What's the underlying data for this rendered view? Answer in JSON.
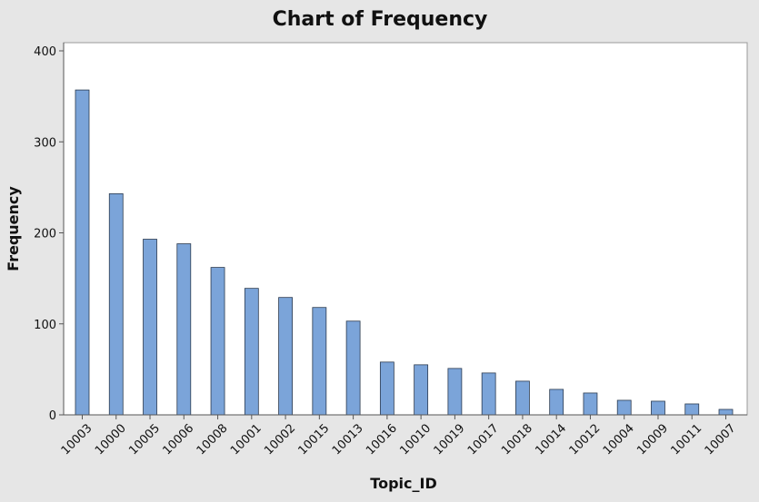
{
  "chart_data": {
    "type": "bar",
    "title": "Chart of Frequency",
    "xlabel": "Topic_ID",
    "ylabel": "Frequency",
    "ylim": [
      0,
      400
    ],
    "yticks": [
      0,
      100,
      200,
      300,
      400
    ],
    "grid": false,
    "legend": "none",
    "bar_color": "#7ba4d9",
    "bar_edge_color": "#2b3a4f",
    "categories": [
      "10003",
      "10000",
      "10005",
      "10006",
      "10008",
      "10001",
      "10002",
      "10015",
      "10013",
      "10016",
      "10010",
      "10019",
      "10017",
      "10018",
      "10014",
      "10012",
      "10004",
      "10009",
      "10011",
      "10007"
    ],
    "values": [
      357,
      243,
      193,
      188,
      162,
      139,
      129,
      118,
      103,
      58,
      55,
      51,
      46,
      37,
      28,
      24,
      16,
      15,
      12,
      6
    ]
  }
}
